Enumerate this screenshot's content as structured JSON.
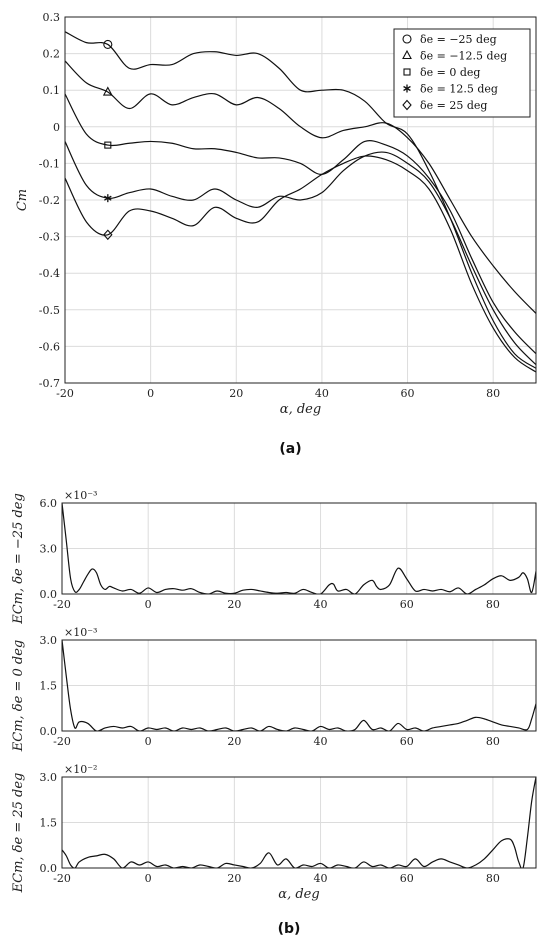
{
  "chart_data": [
    {
      "id": "a",
      "type": "line",
      "caption": "(a)",
      "xlabel": "α, deg",
      "ylabel": "Cm",
      "xlim": [
        -20,
        90
      ],
      "ylim": [
        -0.7,
        0.3
      ],
      "xticks": [
        -20,
        0,
        20,
        40,
        60,
        80
      ],
      "yticks": [
        0.3,
        0.2,
        0.1,
        0,
        -0.1,
        -0.2,
        -0.3,
        -0.4,
        -0.5,
        -0.6,
        -0.7
      ],
      "xtick_labels": [
        "-20",
        "0",
        "20",
        "40",
        "60",
        "80"
      ],
      "ytick_labels": [
        "0.3",
        "0.2",
        "0.1",
        "0",
        "-0.1",
        "-0.2",
        "-0.3",
        "-0.4",
        "-0.5",
        "-0.6",
        "-0.7"
      ],
      "grid": true,
      "legend_position": "top-right",
      "series": [
        {
          "name": "δe = −25 deg",
          "marker": "circle",
          "marker_x": -10,
          "x": [
            -20,
            -15,
            -10,
            -5,
            0,
            5,
            10,
            15,
            20,
            25,
            30,
            35,
            40,
            45,
            50,
            55,
            60,
            65,
            70,
            75,
            80,
            85,
            90
          ],
          "y": [
            0.26,
            0.23,
            0.225,
            0.16,
            0.17,
            0.17,
            0.2,
            0.205,
            0.195,
            0.2,
            0.16,
            0.1,
            0.1,
            0.1,
            0.07,
            0.01,
            -0.02,
            -0.12,
            -0.25,
            -0.4,
            -0.53,
            -0.62,
            -0.66
          ]
        },
        {
          "name": "δe = −12.5 deg",
          "marker": "triangle",
          "marker_x": -10,
          "x": [
            -20,
            -15,
            -10,
            -5,
            0,
            5,
            10,
            15,
            20,
            25,
            30,
            35,
            40,
            45,
            50,
            55,
            60,
            65,
            70,
            75,
            80,
            85,
            90
          ],
          "y": [
            0.18,
            0.12,
            0.095,
            0.05,
            0.09,
            0.06,
            0.08,
            0.09,
            0.06,
            0.08,
            0.05,
            0.0,
            -0.03,
            -0.01,
            0.0,
            0.01,
            -0.03,
            -0.1,
            -0.2,
            -0.3,
            -0.38,
            -0.45,
            -0.51
          ]
        },
        {
          "name": "δe = 0 deg",
          "marker": "square",
          "marker_x": -10,
          "x": [
            -20,
            -15,
            -10,
            -5,
            0,
            5,
            10,
            15,
            20,
            25,
            30,
            35,
            40,
            45,
            50,
            55,
            60,
            65,
            70,
            75,
            80,
            85,
            90
          ],
          "y": [
            0.09,
            -0.02,
            -0.05,
            -0.045,
            -0.04,
            -0.045,
            -0.06,
            -0.06,
            -0.07,
            -0.085,
            -0.085,
            -0.1,
            -0.13,
            -0.09,
            -0.04,
            -0.05,
            -0.08,
            -0.14,
            -0.23,
            -0.36,
            -0.48,
            -0.56,
            -0.62
          ]
        },
        {
          "name": "δe = 12.5 deg",
          "marker": "asterisk",
          "marker_x": -10,
          "x": [
            -20,
            -15,
            -10,
            -5,
            0,
            5,
            10,
            15,
            20,
            25,
            30,
            35,
            40,
            45,
            50,
            55,
            60,
            65,
            70,
            75,
            80,
            85,
            90
          ],
          "y": [
            -0.04,
            -0.16,
            -0.195,
            -0.18,
            -0.17,
            -0.19,
            -0.2,
            -0.17,
            -0.2,
            -0.22,
            -0.19,
            -0.2,
            -0.18,
            -0.12,
            -0.08,
            -0.07,
            -0.1,
            -0.15,
            -0.25,
            -0.38,
            -0.5,
            -0.59,
            -0.65
          ]
        },
        {
          "name": "δe = 25 deg",
          "marker": "diamond",
          "marker_x": -10,
          "x": [
            -20,
            -15,
            -10,
            -5,
            0,
            5,
            10,
            15,
            20,
            25,
            30,
            35,
            40,
            45,
            50,
            55,
            60,
            65,
            70,
            75,
            80,
            85,
            90
          ],
          "y": [
            -0.14,
            -0.26,
            -0.295,
            -0.23,
            -0.23,
            -0.25,
            -0.27,
            -0.22,
            -0.25,
            -0.26,
            -0.2,
            -0.17,
            -0.13,
            -0.1,
            -0.08,
            -0.09,
            -0.12,
            -0.17,
            -0.28,
            -0.43,
            -0.55,
            -0.63,
            -0.67
          ]
        }
      ]
    },
    {
      "id": "b1",
      "type": "line",
      "ylabel": "ECm, δe = −25 deg",
      "multiplier": "×10⁻³",
      "xlim": [
        -20,
        90
      ],
      "ylim": [
        0,
        6.0
      ],
      "xticks": [
        -20,
        0,
        20,
        40,
        60,
        80
      ],
      "xtick_labels": [
        "-20",
        "0",
        "20",
        "40",
        "60",
        "80"
      ],
      "yticks": [
        0,
        3.0,
        6.0
      ],
      "ytick_labels": [
        "0.0",
        "3.0",
        "6.0"
      ],
      "grid": true,
      "series": [
        {
          "x": [
            -20,
            -19,
            -18,
            -17,
            -16,
            -15,
            -14,
            -13,
            -12,
            -11,
            -10,
            -9,
            -8,
            -6,
            -4,
            -2,
            0,
            2,
            4,
            6,
            8,
            10,
            12,
            14,
            16,
            18,
            20,
            22,
            24,
            26,
            28,
            30,
            32,
            34,
            36,
            38,
            40,
            42,
            43,
            44,
            46,
            48,
            50,
            52,
            53,
            54,
            56,
            58,
            60,
            62,
            64,
            66,
            68,
            70,
            72,
            74,
            76,
            78,
            80,
            82,
            84,
            86,
            87,
            88,
            89,
            90
          ],
          "y": [
            6.0,
            3.5,
            1.0,
            0.15,
            0.3,
            0.8,
            1.3,
            1.65,
            1.4,
            0.6,
            0.3,
            0.5,
            0.4,
            0.2,
            0.3,
            0.05,
            0.4,
            0.1,
            0.3,
            0.35,
            0.25,
            0.35,
            0.1,
            0.0,
            0.2,
            0.05,
            0.05,
            0.25,
            0.3,
            0.2,
            0.1,
            0.05,
            0.1,
            0.05,
            0.3,
            0.1,
            0.0,
            0.6,
            0.65,
            0.2,
            0.3,
            0.0,
            0.6,
            0.9,
            0.5,
            0.3,
            0.6,
            1.7,
            1.0,
            0.2,
            0.3,
            0.2,
            0.3,
            0.15,
            0.4,
            0.0,
            0.3,
            0.6,
            1.0,
            1.2,
            0.9,
            1.1,
            1.4,
            1.0,
            0.1,
            1.5
          ]
        }
      ]
    },
    {
      "id": "b2",
      "type": "line",
      "ylabel": "ECm, δe = 0 deg",
      "multiplier": "×10⁻³",
      "xlim": [
        -20,
        90
      ],
      "ylim": [
        0,
        3.0
      ],
      "xticks": [
        -20,
        0,
        20,
        40,
        60,
        80
      ],
      "xtick_labels": [
        "-20",
        "0",
        "20",
        "40",
        "60",
        "80"
      ],
      "yticks": [
        0,
        1.5,
        3.0
      ],
      "ytick_labels": [
        "0.0",
        "1.5",
        "3.0"
      ],
      "grid": true,
      "series": [
        {
          "x": [
            -20,
            -19,
            -18,
            -17,
            -16,
            -14,
            -12,
            -10,
            -8,
            -6,
            -4,
            -2,
            0,
            2,
            4,
            6,
            8,
            10,
            12,
            14,
            16,
            18,
            20,
            22,
            24,
            26,
            28,
            30,
            32,
            34,
            36,
            38,
            40,
            42,
            44,
            46,
            48,
            50,
            52,
            54,
            56,
            58,
            60,
            62,
            64,
            66,
            68,
            70,
            72,
            74,
            76,
            78,
            80,
            82,
            84,
            86,
            88,
            89,
            90
          ],
          "y": [
            3.0,
            1.8,
            0.7,
            0.1,
            0.3,
            0.25,
            0.0,
            0.1,
            0.15,
            0.1,
            0.15,
            0.0,
            0.1,
            0.05,
            0.1,
            0.0,
            0.1,
            0.05,
            0.1,
            0.0,
            0.05,
            0.1,
            0.0,
            0.05,
            0.1,
            0.0,
            0.15,
            0.05,
            0.0,
            0.1,
            0.05,
            0.0,
            0.15,
            0.05,
            0.1,
            0.0,
            0.05,
            0.35,
            0.05,
            0.1,
            0.0,
            0.25,
            0.05,
            0.1,
            0.0,
            0.1,
            0.15,
            0.2,
            0.25,
            0.35,
            0.45,
            0.4,
            0.3,
            0.2,
            0.15,
            0.1,
            0.05,
            0.4,
            0.9
          ]
        }
      ]
    },
    {
      "id": "b3",
      "type": "line",
      "caption": "(b)",
      "xlabel": "α, deg",
      "ylabel": "ECm, δe = 25 deg",
      "multiplier": "×10⁻²",
      "xlim": [
        -20,
        90
      ],
      "ylim": [
        0,
        3.0
      ],
      "xticks": [
        -20,
        0,
        20,
        40,
        60,
        80
      ],
      "xtick_labels": [
        "-20",
        "0",
        "20",
        "40",
        "60",
        "80"
      ],
      "yticks": [
        0,
        1.5,
        3.0
      ],
      "ytick_labels": [
        "0.0",
        "1.5",
        "3.0"
      ],
      "grid": true,
      "series": [
        {
          "x": [
            -20,
            -19,
            -18,
            -17,
            -16,
            -14,
            -12,
            -10,
            -8,
            -6,
            -4,
            -2,
            0,
            2,
            4,
            6,
            8,
            10,
            12,
            14,
            16,
            18,
            20,
            22,
            24,
            26,
            28,
            30,
            32,
            34,
            36,
            38,
            40,
            42,
            44,
            46,
            48,
            50,
            52,
            54,
            56,
            58,
            60,
            62,
            64,
            66,
            68,
            70,
            72,
            74,
            76,
            78,
            80,
            82,
            84,
            85,
            86,
            87,
            88,
            89,
            90
          ],
          "y": [
            0.6,
            0.4,
            0.1,
            0.0,
            0.2,
            0.35,
            0.4,
            0.45,
            0.3,
            0.0,
            0.2,
            0.1,
            0.2,
            0.05,
            0.1,
            0.0,
            0.05,
            0.0,
            0.1,
            0.05,
            0.0,
            0.15,
            0.1,
            0.05,
            0.0,
            0.15,
            0.5,
            0.1,
            0.3,
            0.0,
            0.1,
            0.05,
            0.15,
            0.0,
            0.1,
            0.05,
            0.0,
            0.2,
            0.05,
            0.1,
            0.0,
            0.1,
            0.05,
            0.3,
            0.05,
            0.2,
            0.3,
            0.2,
            0.1,
            0.0,
            0.1,
            0.3,
            0.6,
            0.9,
            0.95,
            0.7,
            0.2,
            0.0,
            1.0,
            2.2,
            3.0
          ]
        }
      ]
    }
  ]
}
